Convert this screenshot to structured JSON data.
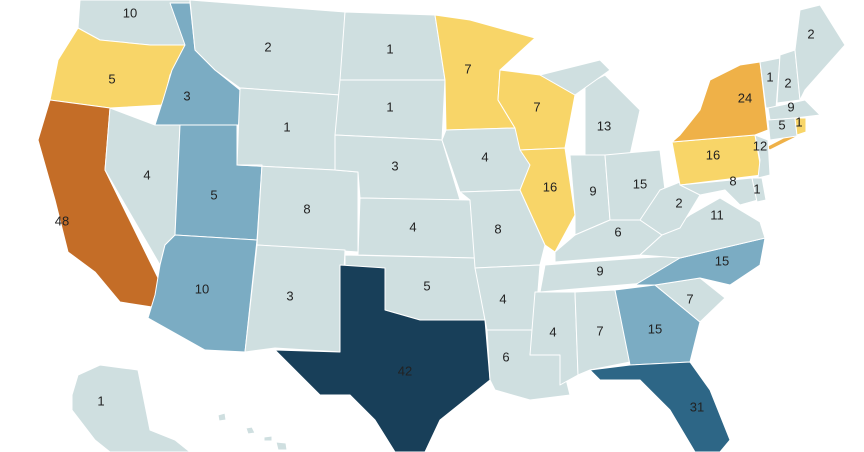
{
  "colors": {
    "level_1": "#cfdfe0",
    "level_2": "#f8d568",
    "level_3": "#efb148",
    "level_4": "#c46d27",
    "level_5": "#7bacc3",
    "level_6": "#2d6686",
    "level_7": "#183f59"
  },
  "states": [
    {
      "id": "WA",
      "value": "10",
      "level": "level_1"
    },
    {
      "id": "OR",
      "value": "5",
      "level": "level_2"
    },
    {
      "id": "CA",
      "value": "48",
      "level": "level_4"
    },
    {
      "id": "ID",
      "value": "3",
      "level": "level_5"
    },
    {
      "id": "NV",
      "value": "4",
      "level": "level_1"
    },
    {
      "id": "UT",
      "value": "5",
      "level": "level_5"
    },
    {
      "id": "AZ",
      "value": "10",
      "level": "level_5"
    },
    {
      "id": "MT",
      "value": "2",
      "level": "level_1"
    },
    {
      "id": "WY",
      "value": "1",
      "level": "level_1"
    },
    {
      "id": "CO",
      "value": "8",
      "level": "level_1"
    },
    {
      "id": "NM",
      "value": "3",
      "level": "level_1"
    },
    {
      "id": "ND",
      "value": "1",
      "level": "level_1"
    },
    {
      "id": "SD",
      "value": "1",
      "level": "level_1"
    },
    {
      "id": "NE",
      "value": "3",
      "level": "level_1"
    },
    {
      "id": "KS",
      "value": "4",
      "level": "level_1"
    },
    {
      "id": "OK",
      "value": "5",
      "level": "level_1"
    },
    {
      "id": "TX",
      "value": "42",
      "level": "level_7"
    },
    {
      "id": "MN",
      "value": "7",
      "level": "level_2"
    },
    {
      "id": "IA",
      "value": "4",
      "level": "level_1"
    },
    {
      "id": "MO",
      "value": "8",
      "level": "level_1"
    },
    {
      "id": "AR",
      "value": "4",
      "level": "level_1"
    },
    {
      "id": "LA",
      "value": "6",
      "level": "level_1"
    },
    {
      "id": "WI",
      "value": "7",
      "level": "level_2"
    },
    {
      "id": "IL",
      "value": "16",
      "level": "level_2"
    },
    {
      "id": "MI",
      "value": "13",
      "level": "level_1"
    },
    {
      "id": "IN",
      "value": "9",
      "level": "level_1"
    },
    {
      "id": "OH",
      "value": "15",
      "level": "level_1"
    },
    {
      "id": "KY",
      "value": "6",
      "level": "level_1"
    },
    {
      "id": "TN",
      "value": "9",
      "level": "level_1"
    },
    {
      "id": "MS",
      "value": "4",
      "level": "level_1"
    },
    {
      "id": "AL",
      "value": "7",
      "level": "level_1"
    },
    {
      "id": "GA",
      "value": "15",
      "level": "level_5"
    },
    {
      "id": "FL",
      "value": "31",
      "level": "level_6"
    },
    {
      "id": "SC",
      "value": "7",
      "level": "level_1"
    },
    {
      "id": "NC",
      "value": "15",
      "level": "level_5"
    },
    {
      "id": "VA",
      "value": "11",
      "level": "level_1"
    },
    {
      "id": "WV",
      "value": "2",
      "level": "level_1"
    },
    {
      "id": "PA",
      "value": "16",
      "level": "level_2"
    },
    {
      "id": "NY",
      "value": "24",
      "level": "level_3"
    },
    {
      "id": "NJ",
      "value": "12",
      "level": "level_1"
    },
    {
      "id": "MD",
      "value": "8",
      "level": "level_1"
    },
    {
      "id": "DE",
      "value": "1",
      "level": "level_1"
    },
    {
      "id": "VT",
      "value": "1",
      "level": "level_1"
    },
    {
      "id": "NH",
      "value": "2",
      "level": "level_1"
    },
    {
      "id": "ME",
      "value": "2",
      "level": "level_1"
    },
    {
      "id": "MA",
      "value": "9",
      "level": "level_1"
    },
    {
      "id": "CT",
      "value": "5",
      "level": "level_1"
    },
    {
      "id": "RI",
      "value": "1",
      "level": "level_2"
    },
    {
      "id": "AK",
      "value": "1",
      "level": "level_1"
    },
    {
      "id": "HI",
      "value": "",
      "level": "level_1"
    }
  ]
}
